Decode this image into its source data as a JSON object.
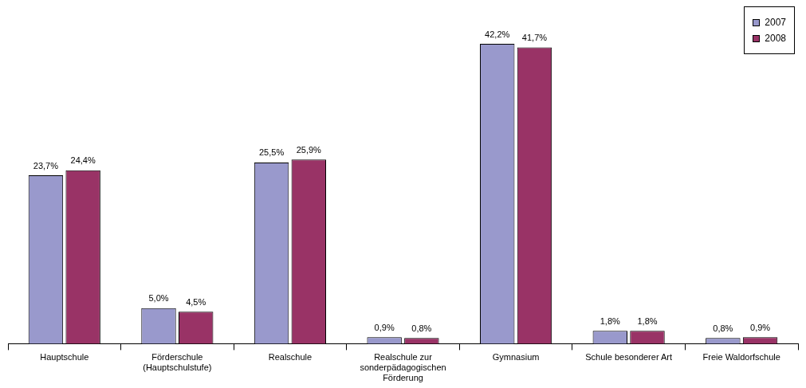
{
  "chart_data": {
    "type": "bar",
    "categories": [
      "Hauptschule",
      "Förderschule (Hauptschulstufe)",
      "Realschule",
      "Realschule zur sonderpädagogischen Förderung",
      "Gymnasium",
      "Schule besonderer Art",
      "Freie Waldorfschule"
    ],
    "series": [
      {
        "name": "2007",
        "color": "#9999cc",
        "values": [
          23.7,
          5.0,
          25.5,
          0.9,
          42.2,
          1.8,
          0.8
        ],
        "value_labels": [
          "23,7%",
          "5,0%",
          "25,5%",
          "0,9%",
          "42,2%",
          "1,8%",
          "0,8%"
        ]
      },
      {
        "name": "2008",
        "color": "#993366",
        "values": [
          24.4,
          4.5,
          25.9,
          0.8,
          41.7,
          1.8,
          0.9
        ],
        "value_labels": [
          "24,4%",
          "4,5%",
          "25,9%",
          "0,8%",
          "41,7%",
          "1,8%",
          "0,9%"
        ]
      }
    ],
    "legend": "top right",
    "grid": false
  }
}
